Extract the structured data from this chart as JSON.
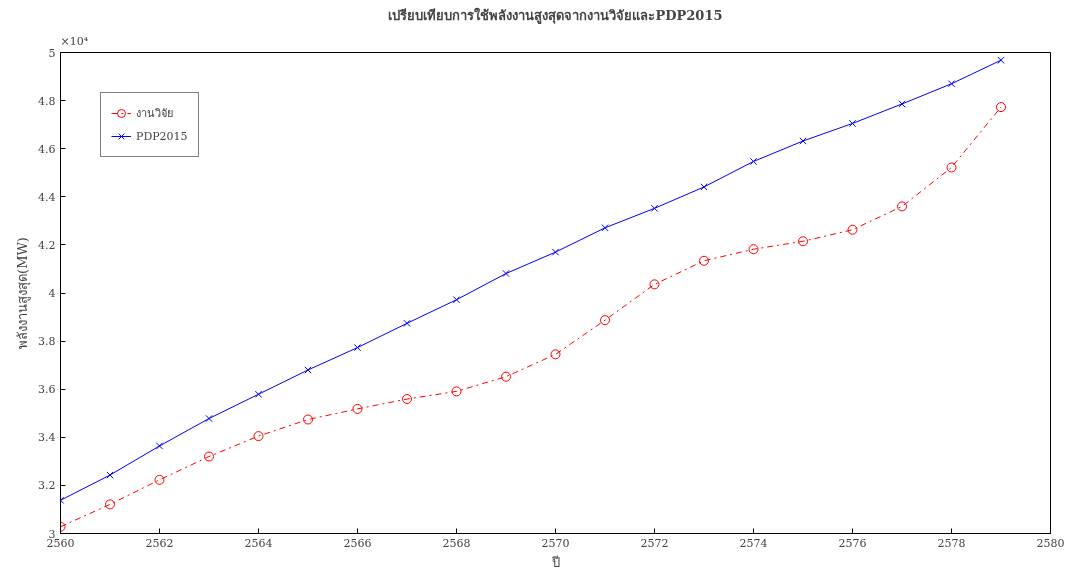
{
  "chart_data": {
    "type": "line",
    "title": "เปรียบเทียบการใช้พลังงานสูงสุดจากงานวิจัยและPDP2015",
    "xlabel": "ปี",
    "ylabel": "พลังงานสูงสุด(MW)",
    "annotations": [
      "×10⁴"
    ],
    "x": [
      2560,
      2561,
      2562,
      2563,
      2564,
      2565,
      2566,
      2567,
      2568,
      2569,
      2570,
      2571,
      2572,
      2573,
      2574,
      2575,
      2576,
      2577,
      2578,
      2579
    ],
    "series": [
      {
        "name": "งานวิจัย",
        "color": "#ff0000",
        "marker": "circle",
        "line_style": "dashdot",
        "values": [
          3.028,
          3.121,
          3.223,
          3.32,
          3.405,
          3.474,
          3.518,
          3.559,
          3.591,
          3.652,
          3.745,
          3.887,
          4.036,
          4.134,
          4.182,
          4.215,
          4.263,
          4.36,
          4.522,
          4.773
        ]
      },
      {
        "name": "PDP2015",
        "color": "#0000ff",
        "marker": "cross",
        "line_style": "solid",
        "values": [
          3.138,
          3.243,
          3.364,
          3.478,
          3.579,
          3.68,
          3.773,
          3.874,
          3.972,
          4.081,
          4.17,
          4.271,
          4.352,
          4.441,
          4.547,
          4.632,
          4.705,
          4.786,
          4.87,
          4.968
        ]
      }
    ],
    "xlim": [
      2560,
      2580
    ],
    "xticks": [
      2560,
      2562,
      2564,
      2566,
      2568,
      2570,
      2572,
      2574,
      2576,
      2578,
      2580
    ],
    "ylim": [
      3,
      5
    ],
    "yticks": [
      3,
      3.2,
      3.4,
      3.6,
      3.8,
      4,
      4.2,
      4.4,
      4.6,
      4.8,
      5
    ],
    "grid": false,
    "legend": "top left"
  }
}
